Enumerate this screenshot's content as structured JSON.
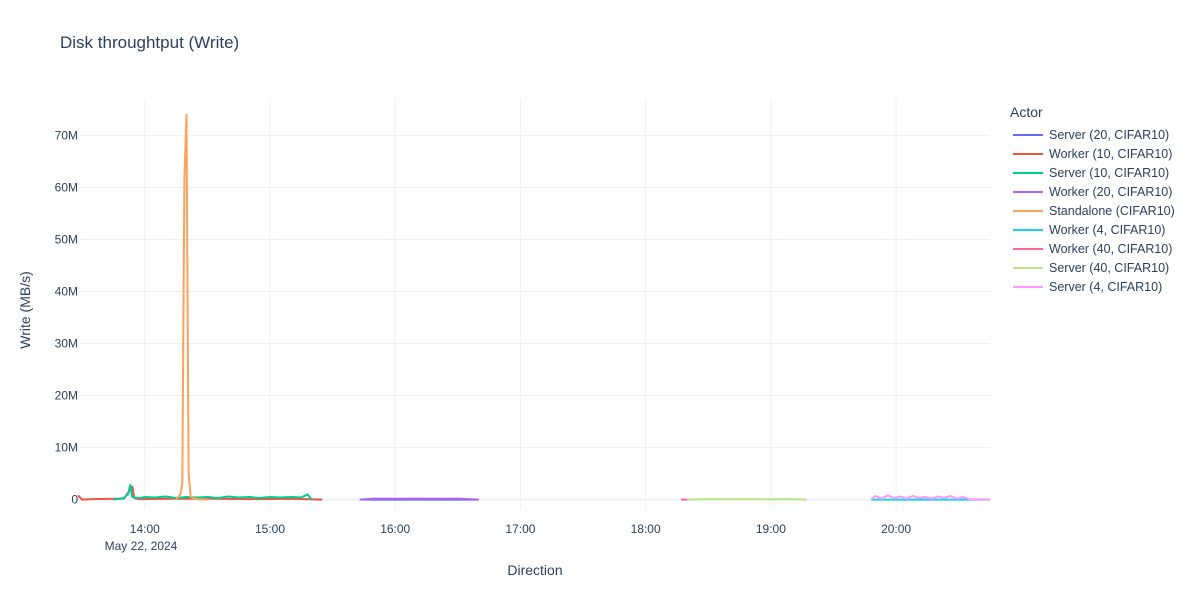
{
  "chart_data": {
    "type": "line",
    "title": "Disk throughtput (Write)",
    "xlabel": "Direction",
    "ylabel": "Write (MB/s)",
    "x_date_label": "May 22, 2024",
    "x_ticks": [
      "14:00",
      "15:00",
      "16:00",
      "17:00",
      "18:00",
      "19:00",
      "20:00"
    ],
    "y_ticks": [
      "0",
      "10M",
      "20M",
      "30M",
      "40M",
      "50M",
      "60M",
      "70M"
    ],
    "xlim": [
      "13:28",
      "20:45"
    ],
    "ylim": [
      -2000000,
      77000000
    ],
    "grid": true,
    "legend_title": "Actor",
    "legend_position": "right",
    "series": [
      {
        "name": "Server (20, CIFAR10)",
        "color": "#636efa",
        "x": [
          "15:45",
          "16:10",
          "16:40"
        ],
        "y": [
          0,
          0,
          0
        ]
      },
      {
        "name": "Worker (10, CIFAR10)",
        "color": "#ef553b",
        "x": [
          "13:28",
          "13:30",
          "13:35",
          "13:50",
          "13:54",
          "13:55",
          "13:57",
          "14:10",
          "14:30",
          "14:50",
          "15:10",
          "15:25"
        ],
        "y": [
          800000,
          0,
          100000,
          200000,
          2500000,
          300000,
          100000,
          150000,
          200000,
          100000,
          150000,
          0
        ]
      },
      {
        "name": "Server (10, CIFAR10)",
        "color": "#00cc96",
        "x": [
          "13:45",
          "13:50",
          "13:52",
          "13:53",
          "13:54",
          "13:55",
          "13:58",
          "14:00",
          "14:05",
          "14:10",
          "14:15",
          "14:20",
          "14:25",
          "14:30",
          "14:35",
          "14:40",
          "14:45",
          "14:50",
          "14:55",
          "15:00",
          "15:05",
          "15:10",
          "15:15",
          "15:18",
          "15:20"
        ],
        "y": [
          0,
          300000,
          1000000,
          2800000,
          500000,
          400000,
          300000,
          500000,
          400000,
          600000,
          300000,
          500000,
          400000,
          500000,
          300000,
          600000,
          400000,
          500000,
          300000,
          500000,
          400000,
          500000,
          400000,
          1000000,
          0
        ]
      },
      {
        "name": "Worker (20, CIFAR10)",
        "color": "#ab63fa",
        "x": [
          "15:43",
          "15:50",
          "16:00",
          "16:10",
          "16:20",
          "16:30",
          "16:40"
        ],
        "y": [
          0,
          200000,
          150000,
          200000,
          150000,
          200000,
          0
        ]
      },
      {
        "name": "Standalone (CIFAR10)",
        "color": "#ffa15a",
        "x": [
          "14:15",
          "14:17",
          "14:18",
          "14:19",
          "14:20",
          "14:21",
          "14:22",
          "14:23",
          "14:24",
          "14:25",
          "14:30"
        ],
        "y": [
          100000,
          1000000,
          3000000,
          62000000,
          74000000,
          5000000,
          600000,
          300000,
          200000,
          100000,
          0
        ]
      },
      {
        "name": "Worker (4, CIFAR10)",
        "color": "#19d3f3",
        "x": [
          "19:48",
          "20:00",
          "20:15",
          "20:30",
          "20:45"
        ],
        "y": [
          0,
          0,
          0,
          0,
          0
        ]
      },
      {
        "name": "Worker (40, CIFAR10)",
        "color": "#ff6692",
        "x": [
          "18:17",
          "18:20"
        ],
        "y": [
          0,
          0
        ]
      },
      {
        "name": "Server (40, CIFAR10)",
        "color": "#b6e880",
        "x": [
          "18:20",
          "18:30",
          "18:40",
          "18:50",
          "19:00",
          "19:10",
          "19:17"
        ],
        "y": [
          0,
          100000,
          50000,
          100000,
          50000,
          100000,
          0
        ]
      },
      {
        "name": "Server (4, CIFAR10)",
        "color": "#ff97ff",
        "x": [
          "19:48",
          "19:50",
          "19:53",
          "19:56",
          "19:59",
          "20:02",
          "20:05",
          "20:08",
          "20:11",
          "20:14",
          "20:17",
          "20:20",
          "20:23",
          "20:26",
          "20:29",
          "20:32",
          "20:35",
          "20:45"
        ],
        "y": [
          0,
          700000,
          200000,
          800000,
          300000,
          600000,
          200000,
          700000,
          300000,
          500000,
          200000,
          600000,
          300000,
          700000,
          200000,
          500000,
          100000,
          0
        ]
      }
    ]
  }
}
